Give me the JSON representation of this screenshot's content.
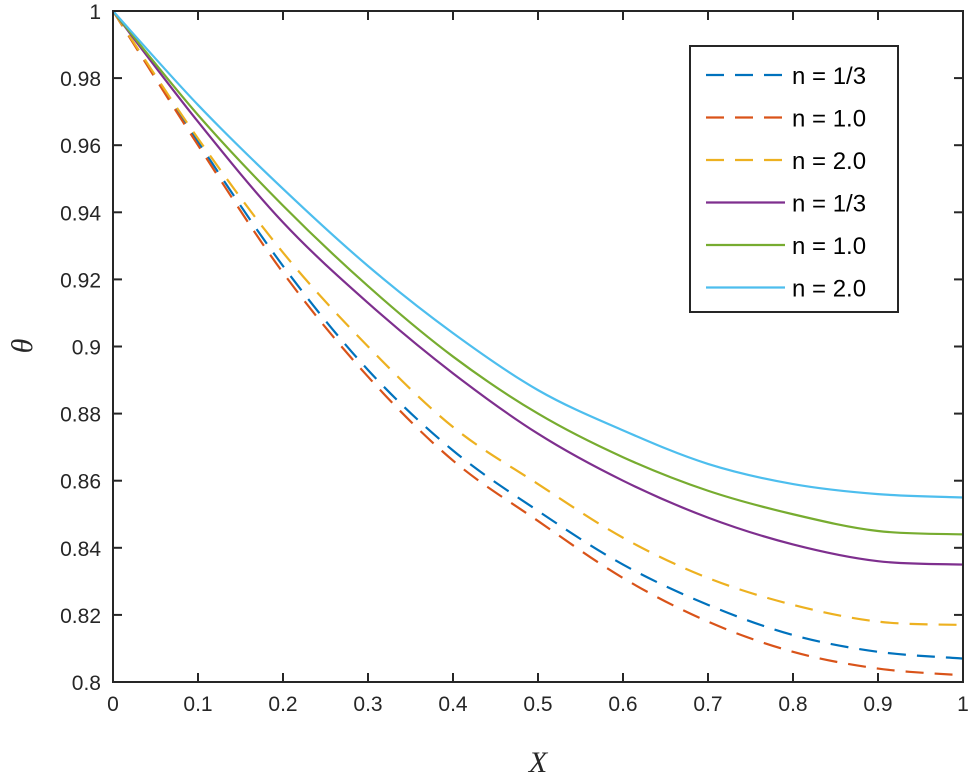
{
  "chart_data": {
    "type": "line",
    "title": "",
    "xlabel": "X",
    "ylabel": "θ",
    "xlim": [
      0,
      1
    ],
    "ylim": [
      0.8,
      1
    ],
    "grid": false,
    "legend_position": "upper right",
    "xticks": [
      "0",
      "0.1",
      "0.2",
      "0.3",
      "0.4",
      "0.5",
      "0.6",
      "0.7",
      "0.8",
      "0.9",
      "1"
    ],
    "yticks": [
      "0.8",
      "0.82",
      "0.84",
      "0.86",
      "0.88",
      "0.9",
      "0.92",
      "0.94",
      "0.96",
      "0.98",
      "1"
    ],
    "x": [
      0,
      0.1,
      0.2,
      0.3,
      0.4,
      0.5,
      0.6,
      0.7,
      0.8,
      0.9,
      1.0
    ],
    "series": [
      {
        "name": "n = 1/3",
        "style": "dashed",
        "color": "#0072BD",
        "values": [
          1,
          0.961,
          0.924,
          0.893,
          0.869,
          0.851,
          0.835,
          0.823,
          0.814,
          0.809,
          0.807
        ]
      },
      {
        "name": "n = 1.0",
        "style": "dashed",
        "color": "#D95319",
        "values": [
          1,
          0.96,
          0.922,
          0.891,
          0.866,
          0.848,
          0.831,
          0.818,
          0.809,
          0.804,
          0.802
        ]
      },
      {
        "name": "n = 2.0",
        "style": "dashed",
        "color": "#EDB120",
        "values": [
          1,
          0.962,
          0.928,
          0.9,
          0.876,
          0.859,
          0.843,
          0.831,
          0.823,
          0.818,
          0.817
        ]
      },
      {
        "name": "n = 1/3",
        "style": "solid",
        "color": "#7E2F8E",
        "values": [
          1,
          0.967,
          0.937,
          0.913,
          0.892,
          0.874,
          0.86,
          0.849,
          0.841,
          0.836,
          0.835
        ]
      },
      {
        "name": "n = 1.0",
        "style": "solid",
        "color": "#77AC30",
        "values": [
          1,
          0.969,
          0.942,
          0.918,
          0.897,
          0.88,
          0.867,
          0.857,
          0.85,
          0.845,
          0.844
        ]
      },
      {
        "name": "n = 2.0",
        "style": "solid",
        "color": "#4DBEEE",
        "values": [
          1,
          0.972,
          0.947,
          0.924,
          0.904,
          0.887,
          0.875,
          0.865,
          0.859,
          0.856,
          0.855
        ]
      }
    ]
  }
}
